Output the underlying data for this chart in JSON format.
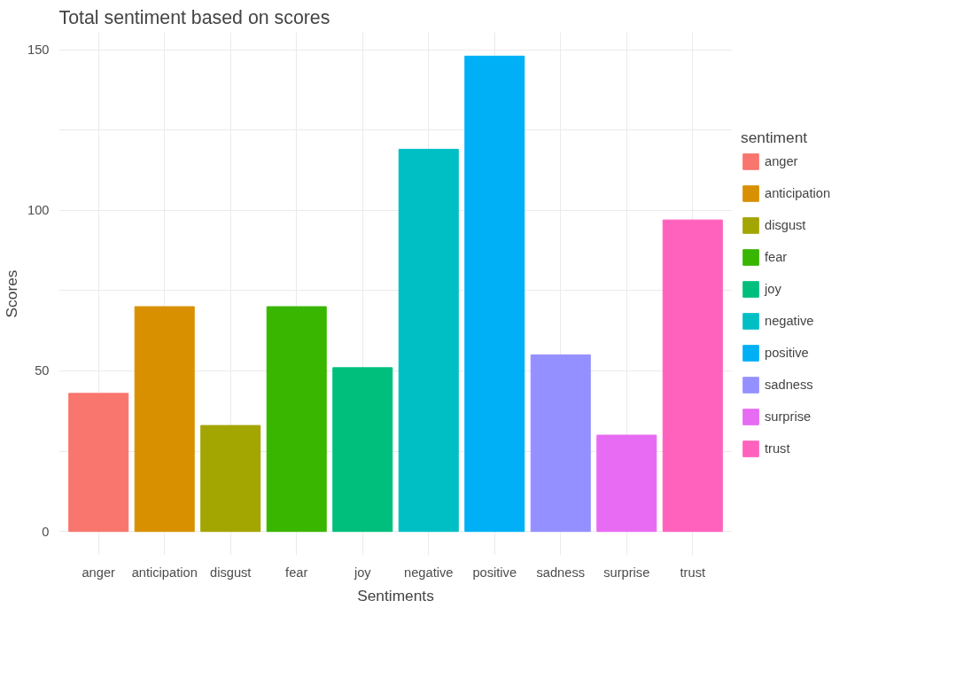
{
  "chart_data": {
    "type": "bar",
    "title": "Total sentiment based on scores",
    "xlabel": "Sentiments",
    "ylabel": "Scores",
    "legend_title": "sentiment",
    "categories": [
      "anger",
      "anticipation",
      "disgust",
      "fear",
      "joy",
      "negative",
      "positive",
      "sadness",
      "surprise",
      "trust"
    ],
    "series": [
      {
        "name": "anger",
        "color": "#f8766d",
        "values": [
          43,
          null,
          null,
          null,
          null,
          null,
          null,
          null,
          null,
          null
        ]
      },
      {
        "name": "anticipation",
        "color": "#d89000",
        "values": [
          null,
          70,
          null,
          null,
          null,
          null,
          null,
          null,
          null,
          null
        ]
      },
      {
        "name": "disgust",
        "color": "#a3a500",
        "values": [
          null,
          null,
          33,
          null,
          null,
          null,
          null,
          null,
          null,
          null
        ]
      },
      {
        "name": "fear",
        "color": "#39b600",
        "values": [
          null,
          null,
          null,
          70,
          null,
          null,
          null,
          null,
          null,
          null
        ]
      },
      {
        "name": "joy",
        "color": "#00bf7d",
        "values": [
          null,
          null,
          null,
          null,
          51,
          null,
          null,
          null,
          null,
          null
        ]
      },
      {
        "name": "negative",
        "color": "#00bfc4",
        "values": [
          null,
          null,
          null,
          null,
          null,
          119,
          null,
          null,
          null,
          null
        ]
      },
      {
        "name": "positive",
        "color": "#00b0f6",
        "values": [
          null,
          null,
          null,
          null,
          null,
          null,
          148,
          null,
          null,
          null
        ]
      },
      {
        "name": "sadness",
        "color": "#9590ff",
        "values": [
          null,
          null,
          null,
          null,
          null,
          null,
          null,
          55,
          null,
          null
        ]
      },
      {
        "name": "surprise",
        "color": "#e76bf3",
        "values": [
          null,
          null,
          null,
          null,
          null,
          null,
          null,
          null,
          30,
          null
        ]
      },
      {
        "name": "trust",
        "color": "#ff62bc",
        "values": [
          null,
          null,
          null,
          null,
          null,
          null,
          null,
          null,
          null,
          97
        ]
      }
    ],
    "ylim": [
      -7.4,
      155.4
    ],
    "yticks": [
      0,
      {
        "value": 25,
        "label": null
      },
      50,
      {
        "value": 75,
        "label": null
      },
      100,
      {
        "value": 125,
        "label": null
      },
      150
    ],
    "grid": true,
    "legend": "right"
  }
}
